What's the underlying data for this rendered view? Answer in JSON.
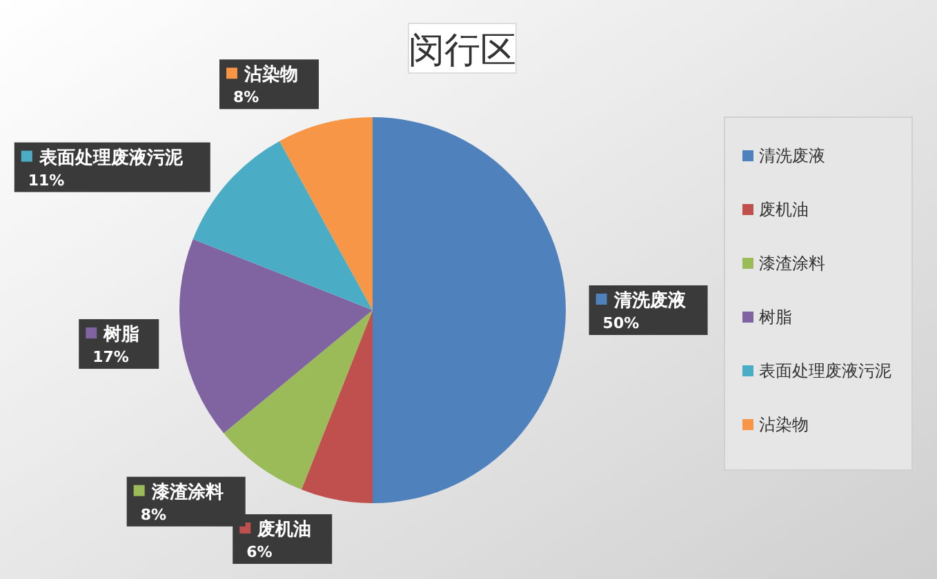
{
  "chart_data": {
    "type": "pie",
    "title": "闵行区",
    "categories": [
      "清洗废液",
      "废机油",
      "漆渣涂料",
      "树脂",
      "表面处理废液污泥",
      "沾染物"
    ],
    "values": [
      50,
      6,
      8,
      17,
      11,
      8
    ],
    "colors": [
      "#4f81bd",
      "#c0504d",
      "#9bbb59",
      "#8064a2",
      "#4bacc6",
      "#f79646"
    ],
    "value_labels": [
      "50%",
      "6%",
      "8%",
      "17%",
      "11%",
      "8%"
    ],
    "legend": "right"
  }
}
